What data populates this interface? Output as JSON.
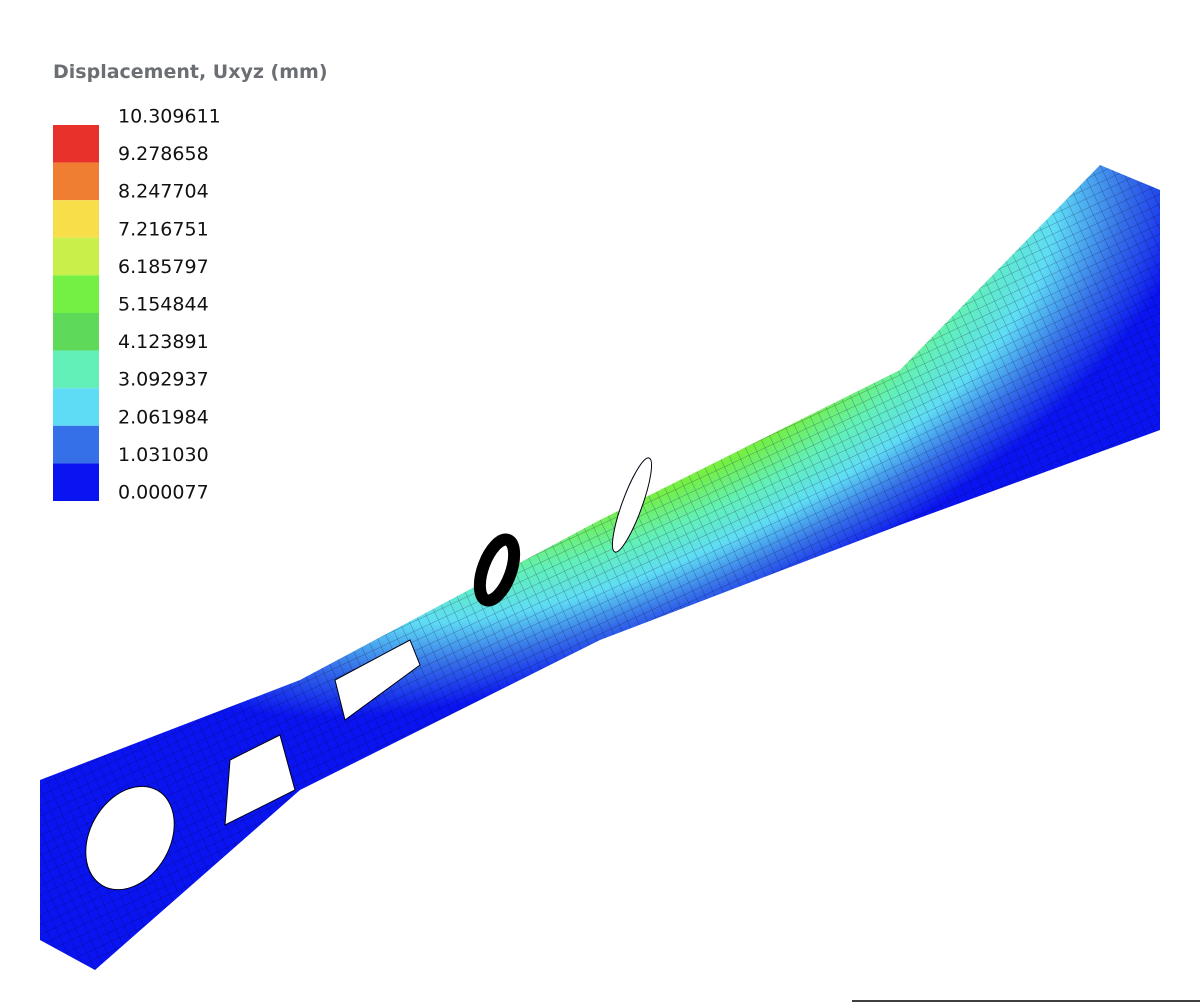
{
  "legend": {
    "title": "Displacement, Uxyz (mm)",
    "levels": [
      "10.309611",
      "9.278658",
      "8.247704",
      "7.216751",
      "6.185797",
      "5.154844",
      "4.123891",
      "3.092937",
      "2.061984",
      "1.031030",
      "0.000077"
    ],
    "colors": [
      "#e8312a",
      "#ef7d32",
      "#f8df4a",
      "#c9f04a",
      "#74ef44",
      "#5fd95a",
      "#62f0b8",
      "#5fdcf5",
      "#3670e8",
      "#0a14f0"
    ]
  }
}
